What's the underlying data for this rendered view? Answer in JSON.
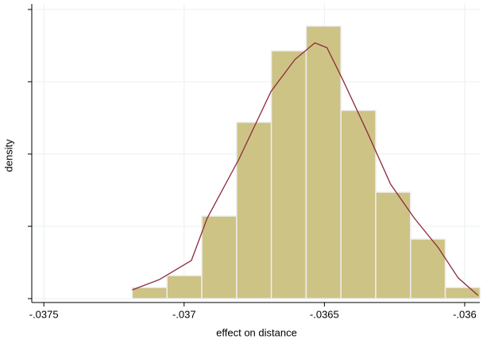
{
  "chart_data": {
    "type": "histogram",
    "x_label": "effect on distance",
    "y_label": "density",
    "bins": [
      -0.037185,
      -0.037061,
      -0.036937,
      -0.036813,
      -0.036689,
      -0.036565,
      -0.036441,
      -0.036317,
      -0.036193,
      -0.036069,
      -0.035945
    ],
    "values": [
      77,
      159,
      571,
      1220,
      1714,
      1885,
      1302,
      736,
      412,
      77
    ],
    "color": "#cdc385",
    "density": {
      "x": [
        -0.037185,
        -0.037088,
        -0.036974,
        -0.036918,
        -0.036804,
        -0.03669,
        -0.036605,
        -0.036534,
        -0.036491,
        -0.036435,
        -0.036349,
        -0.036264,
        -0.036179,
        -0.036094,
        -0.036023,
        -0.035952
      ],
      "values": [
        60,
        132,
        264,
        555,
        967,
        1434,
        1654,
        1769,
        1736,
        1516,
        1159,
        791,
        555,
        352,
        143,
        22
      ],
      "color": "#8c2a3a"
    },
    "xlim": [
      -0.037543,
      -0.035946
    ],
    "ylim": [
      -27,
      2038
    ],
    "xticks": [
      {
        "value": -0.0375,
        "label": "-.0375"
      },
      {
        "value": -0.037,
        "label": "-.037"
      },
      {
        "value": -0.0365,
        "label": "-.0365"
      },
      {
        "value": -0.036,
        "label": "-.036"
      }
    ],
    "yticks": [
      0,
      500,
      1000,
      1500,
      2000
    ],
    "grid": true
  }
}
